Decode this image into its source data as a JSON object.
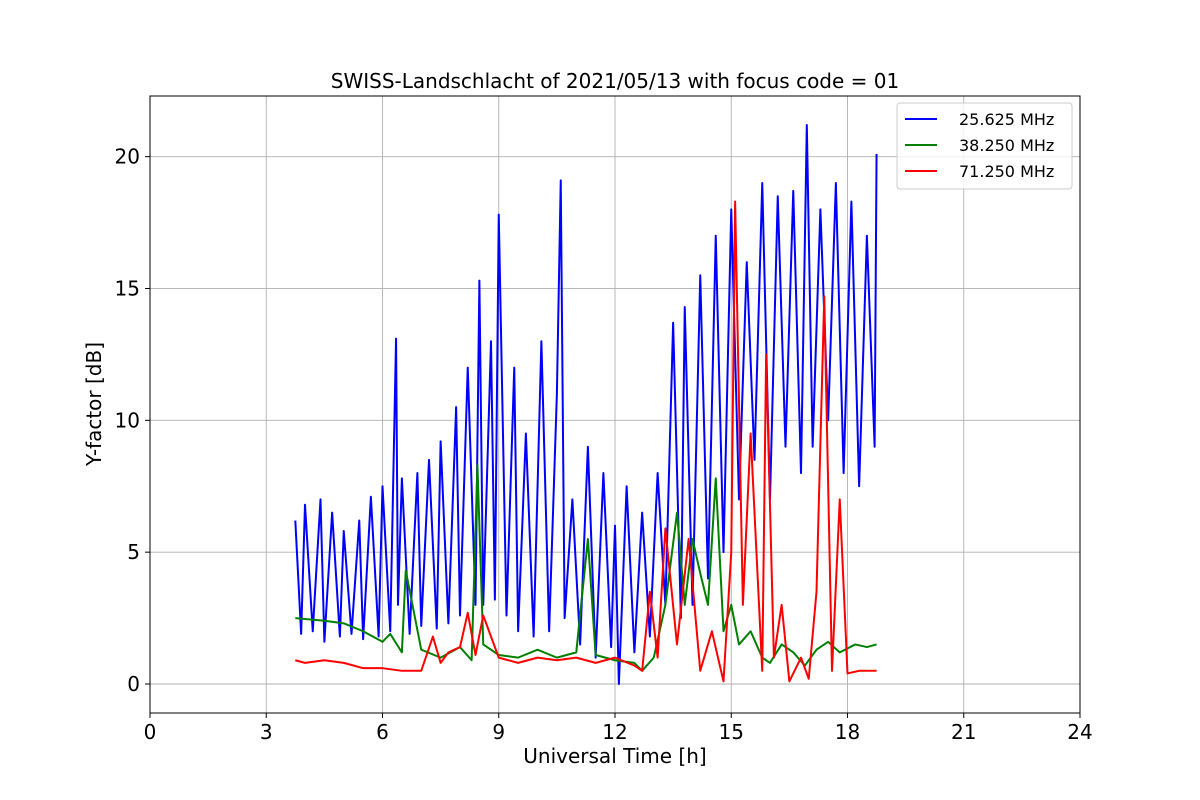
{
  "chart_data": {
    "type": "line",
    "title": "SWISS-Landschlacht of 2021/05/13 with focus code = 01",
    "xlabel": "Universal Time [h]",
    "ylabel": "Y-factor [dB]",
    "xlim": [
      0,
      24
    ],
    "ylim": [
      -1.1,
      22.3
    ],
    "xticks": [
      0,
      3,
      6,
      9,
      12,
      15,
      18,
      21,
      24
    ],
    "yticks": [
      0,
      5,
      10,
      15,
      20
    ],
    "grid": true,
    "legend_position": "top-right",
    "series": [
      {
        "name": "25.625 MHz",
        "color": "#0000ff",
        "x": [
          3.75,
          3.9,
          4.0,
          4.2,
          4.4,
          4.5,
          4.7,
          4.9,
          5.0,
          5.2,
          5.4,
          5.5,
          5.7,
          5.9,
          6.0,
          6.2,
          6.35,
          6.4,
          6.5,
          6.7,
          6.9,
          7.0,
          7.2,
          7.4,
          7.5,
          7.7,
          7.9,
          8.0,
          8.2,
          8.4,
          8.5,
          8.6,
          8.8,
          8.9,
          9.0,
          9.2,
          9.4,
          9.5,
          9.7,
          9.9,
          10.1,
          10.3,
          10.5,
          10.6,
          10.7,
          10.9,
          11.1,
          11.3,
          11.5,
          11.7,
          11.9,
          12.0,
          12.1,
          12.3,
          12.5,
          12.7,
          12.9,
          13.1,
          13.3,
          13.5,
          13.7,
          13.8,
          14.0,
          14.2,
          14.4,
          14.6,
          14.8,
          15.0,
          15.2,
          15.4,
          15.6,
          15.8,
          16.0,
          16.2,
          16.4,
          16.6,
          16.8,
          16.95,
          17.1,
          17.3,
          17.5,
          17.7,
          17.9,
          18.1,
          18.3,
          18.5,
          18.7,
          18.75
        ],
        "y": [
          6.2,
          1.9,
          6.8,
          2.0,
          7.0,
          1.6,
          6.5,
          1.8,
          5.8,
          1.9,
          6.2,
          1.7,
          7.1,
          1.8,
          7.5,
          2.0,
          13.1,
          3.0,
          7.8,
          1.9,
          8.0,
          2.2,
          8.5,
          2.1,
          9.2,
          2.3,
          10.5,
          2.6,
          12.0,
          3.0,
          15.3,
          3.0,
          13.0,
          3.2,
          17.8,
          2.6,
          12.0,
          2.0,
          9.5,
          1.8,
          13.0,
          2.0,
          11.0,
          19.1,
          2.5,
          7.0,
          1.5,
          9.0,
          1.0,
          8.0,
          1.4,
          6.0,
          0.0,
          7.5,
          1.2,
          6.5,
          1.8,
          8.0,
          3.0,
          13.7,
          2.5,
          14.3,
          3.0,
          15.5,
          4.0,
          17.0,
          5.0,
          18.0,
          7.0,
          16.0,
          8.5,
          19.0,
          7.0,
          18.5,
          9.0,
          18.7,
          8.0,
          21.2,
          9.0,
          18.0,
          10.0,
          19.0,
          8.0,
          18.3,
          7.5,
          17.0,
          9.0,
          20.1
        ]
      },
      {
        "name": "38.250 MHz",
        "color": "#008000",
        "x": [
          3.75,
          4.5,
          5.0,
          5.5,
          6.0,
          6.2,
          6.5,
          6.6,
          7.0,
          7.5,
          8.0,
          8.3,
          8.45,
          8.6,
          9.0,
          9.5,
          10.0,
          10.5,
          11.0,
          11.3,
          11.5,
          12.0,
          12.5,
          12.7,
          13.0,
          13.3,
          13.6,
          13.8,
          14.0,
          14.2,
          14.4,
          14.6,
          14.8,
          15.0,
          15.2,
          15.5,
          15.8,
          16.0,
          16.3,
          16.6,
          16.9,
          17.2,
          17.5,
          17.8,
          18.2,
          18.5,
          18.75
        ],
        "y": [
          2.5,
          2.4,
          2.3,
          2.0,
          1.6,
          1.9,
          1.2,
          4.3,
          1.3,
          1.0,
          1.4,
          0.9,
          8.3,
          1.5,
          1.1,
          1.0,
          1.3,
          1.0,
          1.2,
          5.5,
          1.1,
          0.9,
          0.8,
          0.5,
          1.0,
          3.0,
          6.5,
          3.0,
          5.5,
          4.2,
          3.0,
          7.8,
          2.0,
          3.0,
          1.5,
          2.0,
          1.0,
          0.8,
          1.5,
          1.2,
          0.7,
          1.3,
          1.6,
          1.2,
          1.5,
          1.4,
          1.5
        ]
      },
      {
        "name": "71.250 MHz",
        "color": "#ff0000",
        "x": [
          3.75,
          4.0,
          4.5,
          5.0,
          5.5,
          6.0,
          6.5,
          7.0,
          7.3,
          7.5,
          7.7,
          8.0,
          8.2,
          8.4,
          8.6,
          9.0,
          9.5,
          10.0,
          10.5,
          11.0,
          11.5,
          12.0,
          12.5,
          12.7,
          12.9,
          13.1,
          13.3,
          13.6,
          13.9,
          14.2,
          14.5,
          14.8,
          15.0,
          15.1,
          15.3,
          15.5,
          15.8,
          15.9,
          16.1,
          16.3,
          16.5,
          16.8,
          17.0,
          17.2,
          17.4,
          17.6,
          17.8,
          18.0,
          18.3,
          18.75
        ],
        "y": [
          0.9,
          0.8,
          0.9,
          0.8,
          0.6,
          0.6,
          0.5,
          0.5,
          1.8,
          0.8,
          1.2,
          1.4,
          2.7,
          1.1,
          2.6,
          1.0,
          0.8,
          1.0,
          0.9,
          1.0,
          0.8,
          1.0,
          0.7,
          0.5,
          3.5,
          1.0,
          5.9,
          1.5,
          5.5,
          0.5,
          2.0,
          0.1,
          5.0,
          18.3,
          3.0,
          9.5,
          0.5,
          12.5,
          1.0,
          3.0,
          0.1,
          1.0,
          0.2,
          3.5,
          14.7,
          0.5,
          7.0,
          0.4,
          0.5,
          0.5
        ]
      }
    ]
  }
}
